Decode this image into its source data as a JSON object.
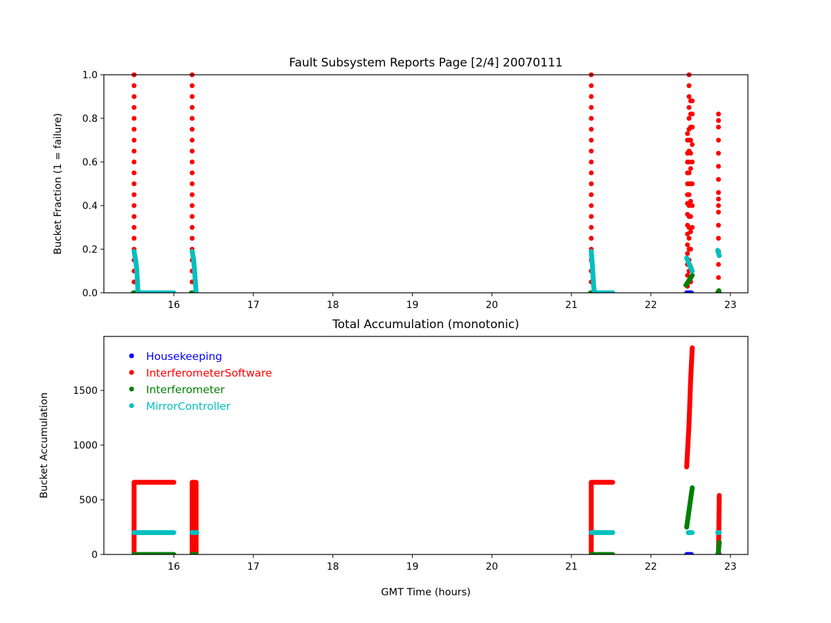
{
  "chart_data": [
    {
      "type": "scatter",
      "title": "Fault Subsystem Reports Page [2/4] 20070111",
      "xlabel": "",
      "ylabel": "Bucket Fraction (1 = failure)",
      "xlim": [
        15.12,
        23.22
      ],
      "ylim": [
        0,
        1.0
      ],
      "xticks": [
        "16",
        "17",
        "18",
        "19",
        "20",
        "21",
        "22",
        "23"
      ],
      "yticks": [
        "0.0",
        "0.2",
        "0.4",
        "0.6",
        "0.8",
        "1.0"
      ],
      "grid": false,
      "series": [
        {
          "name": "Housekeeping",
          "color": "#0000ff",
          "points": [],
          "runs": [
            [
              [
                22.45,
                0
              ],
              [
                22.51,
                0
              ]
            ],
            [
              [
                22.84,
                0
              ],
              [
                22.86,
                0
              ]
            ]
          ]
        },
        {
          "name": "InterferometerSoftware",
          "color": "#ff0000",
          "columns": [
            {
              "x": 15.5,
              "ys": [
                0,
                0.05,
                0.1,
                0.15,
                0.2,
                0.25,
                0.3,
                0.35,
                0.4,
                0.45,
                0.5,
                0.55,
                0.6,
                0.65,
                0.7,
                0.75,
                0.8,
                0.85,
                0.9,
                0.95,
                1.0
              ]
            },
            {
              "x": 16.23,
              "ys": [
                0,
                0.05,
                0.1,
                0.15,
                0.2,
                0.25,
                0.3,
                0.35,
                0.4,
                0.45,
                0.5,
                0.55,
                0.6,
                0.65,
                0.7,
                0.75,
                0.8,
                0.85,
                0.9,
                0.95,
                1.0
              ]
            },
            {
              "x": 21.25,
              "ys": [
                0,
                0.05,
                0.1,
                0.15,
                0.2,
                0.25,
                0.3,
                0.35,
                0.4,
                0.45,
                0.5,
                0.55,
                0.6,
                0.65,
                0.7,
                0.75,
                0.8,
                0.85,
                0.9,
                0.95,
                1.0
              ]
            },
            {
              "x": 22.46,
              "ys": [
                0.03,
                0.08,
                0.13,
                0.18,
                0.22,
                0.27,
                0.31,
                0.36,
                0.41,
                0.45,
                0.5,
                0.55,
                0.6,
                0.64,
                0.7,
                0.73
              ]
            },
            {
              "x": 22.48,
              "ys": [
                0.1,
                0.15,
                0.2,
                0.25,
                0.3,
                0.35,
                0.4,
                0.45,
                0.5,
                0.55,
                0.6,
                0.65,
                0.7,
                0.75,
                0.8,
                0.85,
                0.9,
                0.95,
                1.0
              ]
            },
            {
              "x": 22.5,
              "ys": [
                0.05,
                0.12,
                0.2,
                0.28,
                0.35,
                0.42,
                0.5,
                0.57,
                0.64,
                0.7,
                0.76,
                0.82,
                0.88
              ]
            },
            {
              "x": 22.52,
              "ys": [
                0.3,
                0.4,
                0.5,
                0.6,
                0.68,
                0.76,
                0.82,
                0.88
              ]
            },
            {
              "x": 22.85,
              "ys": [
                0.07,
                0.13,
                0.19,
                0.25,
                0.31,
                0.37,
                0.4,
                0.43,
                0.46,
                0.52,
                0.58,
                0.64,
                0.7,
                0.76,
                0.79,
                0.82
              ]
            }
          ],
          "runs": []
        },
        {
          "name": "Interferometer",
          "color": "#008000",
          "points": [],
          "runs": [
            [
              [
                15.49,
                0
              ],
              [
                15.52,
                0
              ]
            ],
            [
              [
                16.22,
                0
              ],
              [
                16.25,
                0
              ]
            ],
            [
              [
                21.24,
                0
              ],
              [
                21.27,
                0
              ]
            ],
            [
              [
                22.44,
                0.035
              ],
              [
                22.52,
                0.08
              ]
            ],
            [
              [
                22.845,
                0.004
              ],
              [
                22.855,
                0.01
              ]
            ]
          ]
        },
        {
          "name": "MirrorController",
          "color": "#00bfbf",
          "points": [],
          "runs": [
            [
              [
                15.5,
                0.19
              ],
              [
                15.52,
                0.15
              ],
              [
                15.535,
                0.1
              ],
              [
                15.545,
                0.03
              ],
              [
                15.55,
                0
              ],
              [
                16.0,
                0
              ]
            ],
            [
              [
                16.23,
                0.19
              ],
              [
                16.25,
                0.15
              ],
              [
                16.265,
                0.08
              ],
              [
                16.28,
                0
              ]
            ],
            [
              [
                21.25,
                0.19
              ],
              [
                21.265,
                0.12
              ],
              [
                21.28,
                0.03
              ],
              [
                21.29,
                0
              ],
              [
                21.52,
                0
              ]
            ],
            [
              [
                22.45,
                0.16
              ],
              [
                22.52,
                0.1
              ]
            ],
            [
              [
                22.84,
                0.195
              ],
              [
                22.86,
                0.17
              ]
            ]
          ]
        }
      ]
    },
    {
      "type": "scatter",
      "title": "Total Accumulation (monotonic)",
      "xlabel": "GMT Time (hours)",
      "ylabel": "Bucket Accumulation",
      "xlim": [
        15.12,
        23.22
      ],
      "ylim": [
        0,
        1994
      ],
      "xticks": [
        "16",
        "17",
        "18",
        "19",
        "20",
        "21",
        "22",
        "23"
      ],
      "yticks": [
        "0",
        "500",
        "1000",
        "1500"
      ],
      "grid": false,
      "legend_position": "upper-left",
      "series": [
        {
          "name": "Housekeeping",
          "color": "#0000ff",
          "runs": [
            [
              [
                22.45,
                0
              ],
              [
                22.51,
                0
              ]
            ],
            [
              [
                22.84,
                0
              ],
              [
                22.86,
                0
              ]
            ]
          ]
        },
        {
          "name": "InterferometerSoftware",
          "color": "#ff0000",
          "runs": [
            [
              [
                15.5,
                0
              ],
              [
                15.5,
                660
              ],
              [
                16.0,
                660
              ]
            ],
            [
              [
                16.23,
                0
              ],
              [
                16.23,
                660
              ],
              [
                16.28,
                660
              ],
              [
                16.28,
                0
              ]
            ],
            [
              [
                21.25,
                0
              ],
              [
                21.25,
                660
              ],
              [
                21.52,
                660
              ]
            ],
            [
              [
                22.45,
                800
              ],
              [
                22.48,
                1200
              ],
              [
                22.5,
                1600
              ],
              [
                22.52,
                1890
              ]
            ],
            [
              [
                22.85,
                0
              ],
              [
                22.86,
                540
              ]
            ]
          ]
        },
        {
          "name": "Interferometer",
          "color": "#008000",
          "runs": [
            [
              [
                15.5,
                0
              ],
              [
                16.0,
                0
              ]
            ],
            [
              [
                16.23,
                0
              ],
              [
                16.28,
                0
              ]
            ],
            [
              [
                21.25,
                0
              ],
              [
                21.52,
                0
              ]
            ],
            [
              [
                22.45,
                250
              ],
              [
                22.52,
                610
              ]
            ],
            [
              [
                22.845,
                0
              ],
              [
                22.86,
                110
              ]
            ]
          ]
        },
        {
          "name": "MirrorController",
          "color": "#00bfbf",
          "runs": [
            [
              [
                15.5,
                200
              ],
              [
                16.0,
                200
              ]
            ],
            [
              [
                16.23,
                200
              ],
              [
                16.29,
                200
              ]
            ],
            [
              [
                21.25,
                200
              ],
              [
                21.52,
                200
              ]
            ],
            [
              [
                22.47,
                200
              ],
              [
                22.52,
                200
              ]
            ],
            [
              [
                22.84,
                200
              ],
              [
                22.86,
                200
              ]
            ]
          ]
        }
      ]
    }
  ]
}
